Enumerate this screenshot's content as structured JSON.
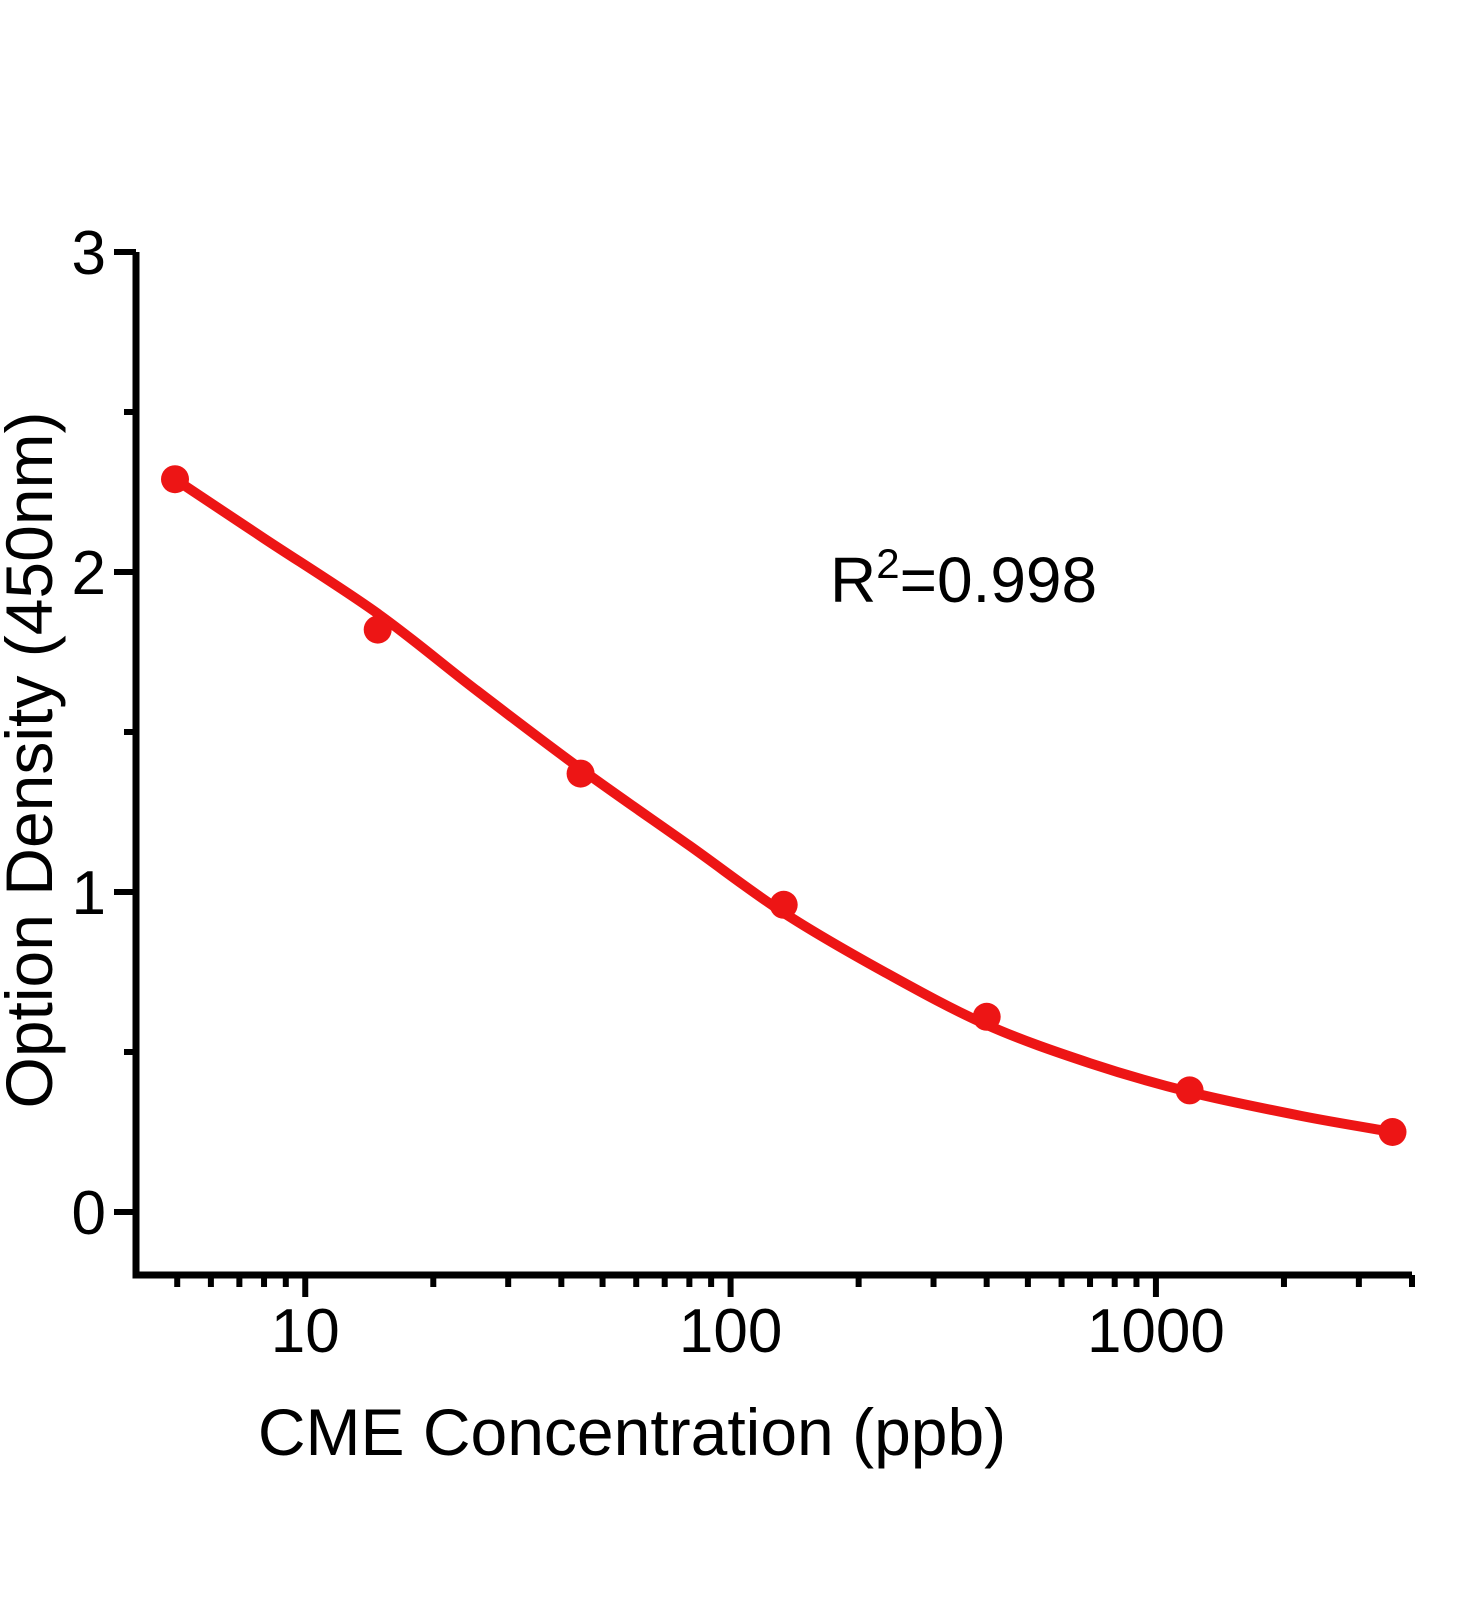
{
  "colors": {
    "accent_red": "#ED1515",
    "axis_black": "#000000",
    "background": "#FFFFFF"
  },
  "chart_data": {
    "type": "scatter",
    "title": "",
    "xlabel": "CME Concentration  (ppb)",
    "ylabel": "Option Density  (450nm)",
    "x_scale": "log",
    "y_scale": "linear",
    "xlim": [
      4,
      4000
    ],
    "ylim": [
      -0.2,
      3
    ],
    "grid": false,
    "legend": "none",
    "x_major_ticks": [
      10,
      100,
      1000
    ],
    "x_major_tick_labels": [
      "10",
      "100",
      "1000"
    ],
    "x_minor_ticks": [
      5,
      6,
      7,
      8,
      9,
      20,
      30,
      40,
      50,
      60,
      70,
      80,
      90,
      200,
      300,
      400,
      500,
      600,
      700,
      800,
      900,
      2000,
      3000,
      4000
    ],
    "y_major_ticks": [
      0,
      1,
      2,
      3
    ],
    "y_major_tick_labels": [
      "0",
      "1",
      "2",
      "3"
    ],
    "y_minor_ticks": [
      0.5,
      1.5,
      2.5
    ],
    "series": [
      {
        "name": "standard-curve-points",
        "color": "#ED1515",
        "marker": "circle",
        "points": [
          [
            4.94,
            2.29
          ],
          [
            14.8,
            1.82
          ],
          [
            44.4,
            1.37
          ],
          [
            133.3,
            0.96
          ],
          [
            400,
            0.61
          ],
          [
            1200,
            0.38
          ],
          [
            3600,
            0.25
          ]
        ]
      }
    ],
    "fit_curve": {
      "name": "4PL-fit-line",
      "color": "#ED1515",
      "anchors": [
        [
          4.94,
          2.29
        ],
        [
          8,
          2.105
        ],
        [
          14.8,
          1.87
        ],
        [
          25,
          1.635
        ],
        [
          44.4,
          1.385
        ],
        [
          80,
          1.145
        ],
        [
          133.3,
          0.935
        ],
        [
          230,
          0.75
        ],
        [
          400,
          0.585
        ],
        [
          700,
          0.465
        ],
        [
          1200,
          0.375
        ],
        [
          2200,
          0.3
        ],
        [
          3600,
          0.25
        ]
      ]
    },
    "annotation": {
      "base": "R",
      "sup": "2",
      "rest": "=0.998"
    }
  }
}
